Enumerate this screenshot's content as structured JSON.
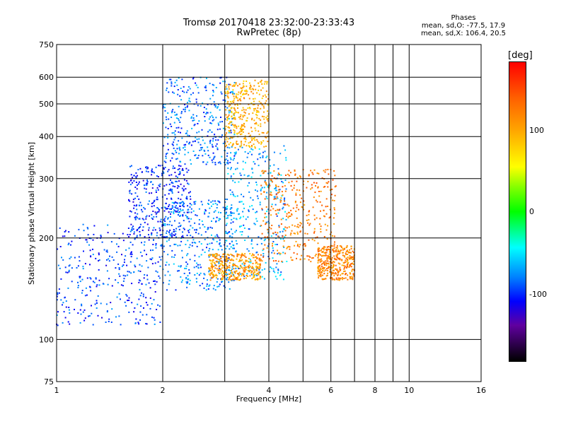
{
  "title": {
    "line1": "Tromsø 20170418 23:32:00-23:33:43",
    "line2": "RwPretec (8p)"
  },
  "phase_info": {
    "heading": "Phases",
    "line_o": "mean, sd,O: -77.5, 17.9",
    "line_x": "mean, sd,X: 106.4, 20.5"
  },
  "colorbar": {
    "unit": "[deg]",
    "ticks": [
      "100",
      "0",
      "-100"
    ],
    "colors": [
      "#ff0000",
      "#ffa000",
      "#ffff00",
      "#00ff00",
      "#00ffff",
      "#0080ff",
      "#0000ff",
      "#000000"
    ]
  },
  "chart_data": {
    "type": "scatter",
    "title": "Tromsø 20170418 23:32:00-23:33:43",
    "subtitle": "RwPretec (8p)",
    "xlabel": "Frequency [MHz]",
    "ylabel": "Stationary phase Virtual Height [km]",
    "xscale": "log",
    "yscale": "log",
    "xlim": [
      1,
      16
    ],
    "ylim": [
      75,
      750
    ],
    "xticks": [
      "1",
      "2",
      "4",
      "6",
      "8",
      "10",
      "16"
    ],
    "yticks": [
      "75",
      "100",
      "200",
      "300",
      "400",
      "500",
      "600",
      "750"
    ],
    "grid": true,
    "colorbar_label": "[deg]",
    "color_value": "phase",
    "clusters": [
      {
        "mode": "O",
        "freq_range": [
          1.0,
          2.0
        ],
        "height_range": [
          110,
          220
        ],
        "phase": -95
      },
      {
        "mode": "O",
        "freq_range": [
          1.6,
          2.4
        ],
        "height_range": [
          200,
          330
        ],
        "phase": -100
      },
      {
        "mode": "O",
        "freq_range": [
          2.0,
          3.2
        ],
        "height_range": [
          140,
          260
        ],
        "phase": -80
      },
      {
        "mode": "O",
        "freq_range": [
          2.0,
          3.2
        ],
        "height_range": [
          330,
          600
        ],
        "phase": -85
      },
      {
        "mode": "O",
        "freq_range": [
          3.0,
          4.5
        ],
        "height_range": [
          150,
          380
        ],
        "phase": -70
      },
      {
        "mode": "X",
        "freq_range": [
          2.7,
          3.8
        ],
        "height_range": [
          150,
          180
        ],
        "phase": 105
      },
      {
        "mode": "X",
        "freq_range": [
          3.0,
          4.0
        ],
        "height_range": [
          370,
          590
        ],
        "phase": 95
      },
      {
        "mode": "X",
        "freq_range": [
          3.8,
          6.2
        ],
        "height_range": [
          170,
          320
        ],
        "phase": 120
      },
      {
        "mode": "X",
        "freq_range": [
          5.5,
          7.0
        ],
        "height_range": [
          150,
          190
        ],
        "phase": 115
      }
    ]
  }
}
